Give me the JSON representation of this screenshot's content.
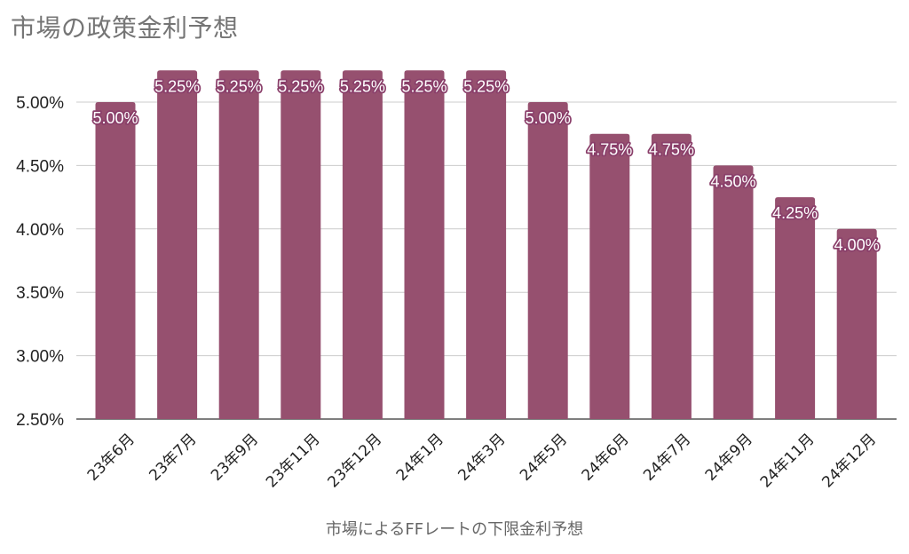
{
  "chart_data": {
    "type": "bar",
    "title": "市場の政策金利予想",
    "xlabel": "市場によるFFレートの下限金利予想",
    "ylabel": "",
    "categories": [
      "23年6月",
      "23年7月",
      "23年9月",
      "23年11月",
      "23年12月",
      "24年1月",
      "24年3月",
      "24年5月",
      "24年6月",
      "24年7月",
      "24年9月",
      "24年11月",
      "24年12月"
    ],
    "values": [
      5.0,
      5.25,
      5.25,
      5.25,
      5.25,
      5.25,
      5.25,
      5.0,
      4.75,
      4.75,
      4.5,
      4.25,
      4.0
    ],
    "data_labels": [
      "5.00%",
      "5.25%",
      "5.25%",
      "5.25%",
      "5.25%",
      "5.25%",
      "5.25%",
      "5.00%",
      "4.75%",
      "4.75%",
      "4.50%",
      "4.25%",
      "4.00%"
    ],
    "ylim": [
      2.5,
      5.25
    ],
    "yticks": [
      2.5,
      3.0,
      3.5,
      4.0,
      4.5,
      5.0
    ],
    "ytick_labels": [
      "2.50%",
      "3.00%",
      "3.50%",
      "4.00%",
      "4.50%",
      "5.00%"
    ],
    "grid": true,
    "legend": "none",
    "bar_color": "#96506f",
    "gridline_color": "#cccccc"
  }
}
